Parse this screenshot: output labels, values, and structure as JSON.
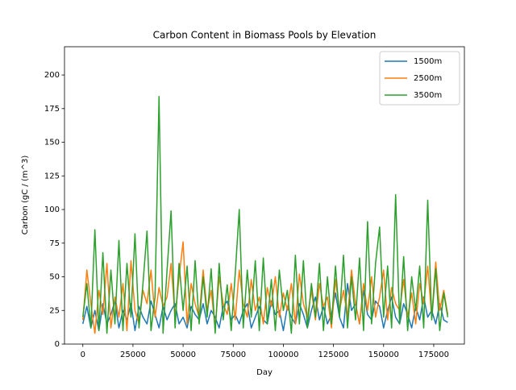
{
  "chart_data": {
    "type": "line",
    "title": "Carbon Content in Biomass Pools by Elevation",
    "xlabel": "Day",
    "ylabel": "Carbon (gC / (m^3)",
    "x": [
      0,
      2000,
      4000,
      6000,
      8000,
      10000,
      12000,
      14000,
      16000,
      18000,
      20000,
      22000,
      24000,
      26000,
      28000,
      30000,
      32000,
      34000,
      36000,
      38000,
      40000,
      42000,
      44000,
      46000,
      48000,
      50000,
      52000,
      54000,
      56000,
      58000,
      60000,
      62000,
      64000,
      66000,
      68000,
      70000,
      72000,
      74000,
      76000,
      78000,
      80000,
      82000,
      84000,
      86000,
      88000,
      90000,
      92000,
      94000,
      96000,
      98000,
      100000,
      102000,
      104000,
      106000,
      108000,
      110000,
      112000,
      114000,
      116000,
      118000,
      120000,
      122000,
      124000,
      126000,
      128000,
      130000,
      132000,
      134000,
      136000,
      138000,
      140000,
      142000,
      144000,
      146000,
      148000,
      150000,
      152000,
      154000,
      156000,
      158000,
      160000,
      162000,
      164000,
      166000,
      168000,
      170000,
      172000,
      174000,
      176000,
      178000,
      180000,
      182000
    ],
    "series": [
      {
        "name": "1500m",
        "color": "#1f77b4",
        "values": [
          15,
          28,
          12,
          25,
          10,
          30,
          15,
          22,
          32,
          12,
          25,
          18,
          30,
          10,
          28,
          20,
          15,
          32,
          22,
          12,
          28,
          18,
          25,
          30,
          15,
          20,
          12,
          28,
          22,
          18,
          30,
          15,
          25,
          20,
          12,
          28,
          32,
          18,
          22,
          15,
          25,
          30,
          12,
          20,
          28,
          18,
          15,
          32,
          22,
          25,
          10,
          28,
          20,
          15,
          30,
          22,
          12,
          25,
          35,
          18,
          28,
          15,
          22,
          38,
          20,
          12,
          45,
          25,
          30,
          15,
          40,
          22,
          18,
          32,
          28,
          12,
          25,
          35,
          20,
          15,
          30,
          22,
          12,
          28,
          18,
          35,
          20,
          25,
          15,
          30,
          18,
          16
        ]
      },
      {
        "name": "2500m",
        "color": "#ff7f0e",
        "values": [
          18,
          55,
          30,
          8,
          40,
          22,
          60,
          12,
          35,
          20,
          45,
          10,
          62,
          25,
          15,
          40,
          30,
          55,
          20,
          42,
          28,
          35,
          60,
          20,
          50,
          76,
          15,
          45,
          30,
          20,
          55,
          25,
          40,
          12,
          50,
          30,
          22,
          45,
          18,
          55,
          30,
          20,
          48,
          25,
          35,
          15,
          42,
          28,
          50,
          20,
          38,
          25,
          45,
          15,
          52,
          30,
          20,
          40,
          18,
          45,
          28,
          35,
          12,
          48,
          25,
          40,
          20,
          55,
          30,
          15,
          45,
          25,
          50,
          20,
          35,
          55,
          18,
          42,
          30,
          25,
          48,
          20,
          38,
          15,
          45,
          30,
          58,
          20,
          61,
          25,
          40,
          22
        ]
      },
      {
        "name": "3500m",
        "color": "#2ca02c",
        "values": [
          20,
          45,
          12,
          85,
          10,
          68,
          8,
          55,
          15,
          77,
          10,
          60,
          20,
          82,
          12,
          45,
          84,
          10,
          35,
          184,
          8,
          55,
          99,
          12,
          60,
          25,
          58,
          10,
          62,
          15,
          50,
          20,
          56,
          8,
          60,
          18,
          44,
          10,
          52,
          100,
          12,
          55,
          20,
          62,
          10,
          64,
          15,
          48,
          10,
          55,
          25,
          40,
          8,
          66,
          15,
          62,
          12,
          45,
          20,
          60,
          10,
          50,
          15,
          58,
          20,
          66,
          12,
          50,
          18,
          64,
          10,
          91,
          15,
          60,
          87,
          20,
          58,
          12,
          111,
          15,
          65,
          10,
          50,
          25,
          58,
          12,
          107,
          18,
          56,
          10,
          38,
          20
        ]
      }
    ],
    "xlim": [
      -9150,
      190300
    ],
    "ylim": [
      0,
      221
    ],
    "xticks": [
      0,
      25000,
      50000,
      75000,
      100000,
      125000,
      150000,
      175000
    ],
    "yticks": [
      0,
      25,
      50,
      75,
      100,
      125,
      150,
      175,
      200
    ],
    "legend": "upper right"
  }
}
